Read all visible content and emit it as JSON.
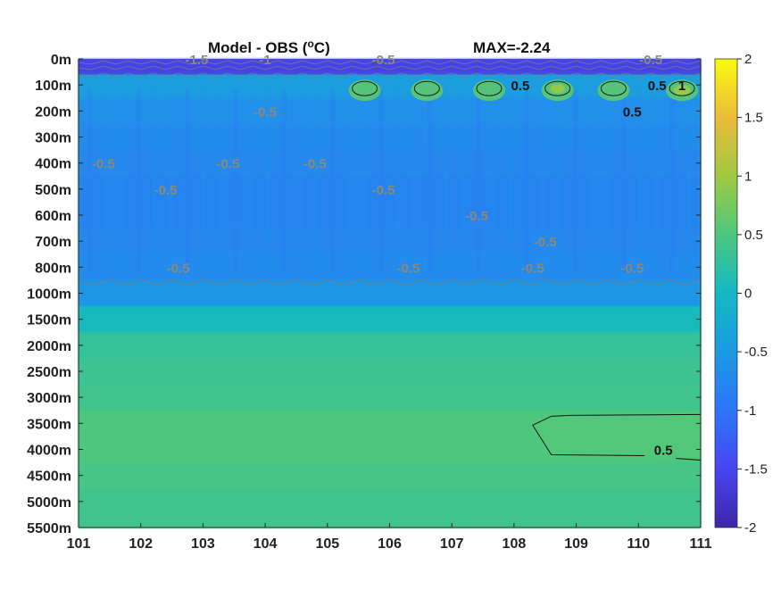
{
  "title": {
    "main": "Model - OBS (",
    "superscript": "o",
    "unit": "C)",
    "max_label": "MAX=-2.24"
  },
  "chart_data": {
    "type": "heatmap",
    "title": "Model - OBS (oC)",
    "annotation": "MAX=-2.24",
    "x": {
      "ticks": [
        "101",
        "102",
        "103",
        "104",
        "105",
        "106",
        "107",
        "108",
        "109",
        "110",
        "111"
      ],
      "range": [
        101,
        111
      ]
    },
    "y": {
      "ticks": [
        "0m",
        "100m",
        "200m",
        "300m",
        "400m",
        "500m",
        "600m",
        "700m",
        "800m",
        "1000m",
        "1500m",
        "2000m",
        "2500m",
        "3000m",
        "3500m",
        "4000m",
        "4500m",
        "5000m",
        "5500m"
      ],
      "direction": "depth increasing downward"
    },
    "colorbar": {
      "range": [
        -2,
        2
      ],
      "ticks": [
        "2",
        "1.5",
        "1",
        "0.5",
        "0",
        "-0.5",
        "-1",
        "-1.5",
        "-2"
      ],
      "colormap": "parula"
    },
    "depth_profile": [
      {
        "depth": "0m",
        "value": -1.4
      },
      {
        "depth": "100m",
        "value": -0.45
      },
      {
        "depth": "200m",
        "value": -0.65
      },
      {
        "depth": "300m",
        "value": -0.7
      },
      {
        "depth": "400m",
        "value": -0.75
      },
      {
        "depth": "500m",
        "value": -0.8
      },
      {
        "depth": "600m",
        "value": -0.8
      },
      {
        "depth": "700m",
        "value": -0.75
      },
      {
        "depth": "800m",
        "value": -0.7
      },
      {
        "depth": "1000m",
        "value": -0.55
      },
      {
        "depth": "1500m",
        "value": 0.05
      },
      {
        "depth": "2000m",
        "value": 0.3
      },
      {
        "depth": "2500m",
        "value": 0.35
      },
      {
        "depth": "3000m",
        "value": 0.4
      },
      {
        "depth": "3500m",
        "value": 0.5
      },
      {
        "depth": "4000m",
        "value": 0.5
      },
      {
        "depth": "4500m",
        "value": 0.45
      },
      {
        "depth": "5000m",
        "value": 0.4
      },
      {
        "depth": "5500m",
        "value": 0.4
      }
    ],
    "contour_labels": [
      {
        "text": "-1.5",
        "x": 102.9,
        "depth": "0m"
      },
      {
        "text": "-1",
        "x": 104.0,
        "depth": "0m"
      },
      {
        "text": "-0.5",
        "x": 105.9,
        "depth": "0m"
      },
      {
        "text": "-0.5",
        "x": 110.2,
        "depth": "0m"
      },
      {
        "text": "0.5",
        "x": 108.1,
        "depth": "100m"
      },
      {
        "text": "0.5",
        "x": 110.3,
        "depth": "100m"
      },
      {
        "text": "0.5",
        "x": 109.9,
        "depth": "200m"
      },
      {
        "text": "1",
        "x": 110.7,
        "depth": "100m"
      },
      {
        "text": "-0.5",
        "x": 101.4,
        "depth": "400m"
      },
      {
        "text": "-0.5",
        "x": 102.4,
        "depth": "500m"
      },
      {
        "text": "-0.5",
        "x": 103.4,
        "depth": "400m"
      },
      {
        "text": "-0.5",
        "x": 104.0,
        "depth": "200m"
      },
      {
        "text": "-0.5",
        "x": 104.8,
        "depth": "400m"
      },
      {
        "text": "-0.5",
        "x": 105.9,
        "depth": "500m"
      },
      {
        "text": "-0.5",
        "x": 107.4,
        "depth": "600m"
      },
      {
        "text": "-0.5",
        "x": 108.5,
        "depth": "700m"
      },
      {
        "text": "-0.5",
        "x": 108.3,
        "depth": "800m"
      },
      {
        "text": "-0.5",
        "x": 109.9,
        "depth": "800m"
      },
      {
        "text": "-0.5",
        "x": 102.6,
        "depth": "800m"
      },
      {
        "text": "-0.5",
        "x": 106.3,
        "depth": "800m"
      },
      {
        "text": "0.5",
        "x": 110.4,
        "depth": "4000m"
      }
    ]
  }
}
